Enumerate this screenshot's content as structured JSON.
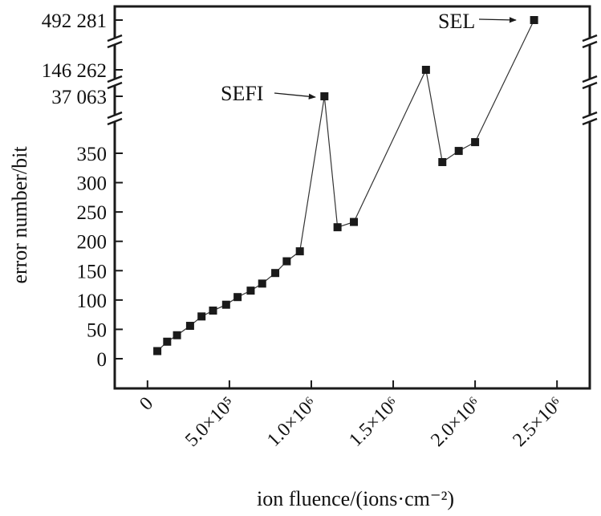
{
  "chart_data": {
    "type": "scatter",
    "style": "line-with-square-markers",
    "xlabel": "ion fluence/(ions·cm⁻²)",
    "ylabel": "error number/bit",
    "x_tick_labels": [
      {
        "value": 0,
        "label": "0"
      },
      {
        "value": 500000,
        "label": "5.0×10⁵"
      },
      {
        "value": 1000000,
        "label": "1.0×10⁶"
      },
      {
        "value": 1500000,
        "label": "1.5×10⁶"
      },
      {
        "value": 2000000,
        "label": "2.0×10⁶"
      },
      {
        "value": 2500000,
        "label": "2.5×10⁶"
      }
    ],
    "y_tick_labels_lower": [
      {
        "value": 0,
        "label": "0"
      },
      {
        "value": 50,
        "label": "50"
      },
      {
        "value": 100,
        "label": "100"
      },
      {
        "value": 150,
        "label": "150"
      },
      {
        "value": 200,
        "label": "200"
      },
      {
        "value": 250,
        "label": "250"
      },
      {
        "value": 300,
        "label": "300"
      },
      {
        "value": 350,
        "label": "350"
      }
    ],
    "y_tick_labels_break": [
      {
        "value": 37063,
        "label": "37 063"
      },
      {
        "value": 146262,
        "label": "146 262"
      },
      {
        "value": 492281,
        "label": "492 281"
      }
    ],
    "y_axis_breaks": "broken axis between 350 and 37 063, 37 063 and 146 262, 146 262 and 492 281",
    "xlim": [
      -200000,
      2700000
    ],
    "ylim": [
      -50,
      390
    ],
    "grid": false,
    "marker_color": "#1a1a1a",
    "line_color": "#333333",
    "series": [
      {
        "points": [
          {
            "x": 60000,
            "y": 13
          },
          {
            "x": 120000,
            "y": 29
          },
          {
            "x": 180000,
            "y": 40
          },
          {
            "x": 260000,
            "y": 56
          },
          {
            "x": 330000,
            "y": 72
          },
          {
            "x": 400000,
            "y": 82
          },
          {
            "x": 480000,
            "y": 92
          },
          {
            "x": 550000,
            "y": 105
          },
          {
            "x": 630000,
            "y": 116
          },
          {
            "x": 700000,
            "y": 128
          },
          {
            "x": 780000,
            "y": 146
          },
          {
            "x": 850000,
            "y": 166
          },
          {
            "x": 930000,
            "y": 183
          },
          {
            "x": 1080000,
            "y": 37063
          },
          {
            "x": 1160000,
            "y": 224
          },
          {
            "x": 1260000,
            "y": 233
          },
          {
            "x": 1700000,
            "y": 146262
          },
          {
            "x": 1800000,
            "y": 335
          },
          {
            "x": 1900000,
            "y": 354
          },
          {
            "x": 2000000,
            "y": 369
          },
          {
            "x": 2360000,
            "y": 492281
          }
        ]
      }
    ],
    "annotations": [
      {
        "text": "SEFI",
        "target_x": 1080000,
        "target_y": 37063
      },
      {
        "text": "SEL",
        "target_x": 2360000,
        "target_y": 492281
      }
    ]
  }
}
